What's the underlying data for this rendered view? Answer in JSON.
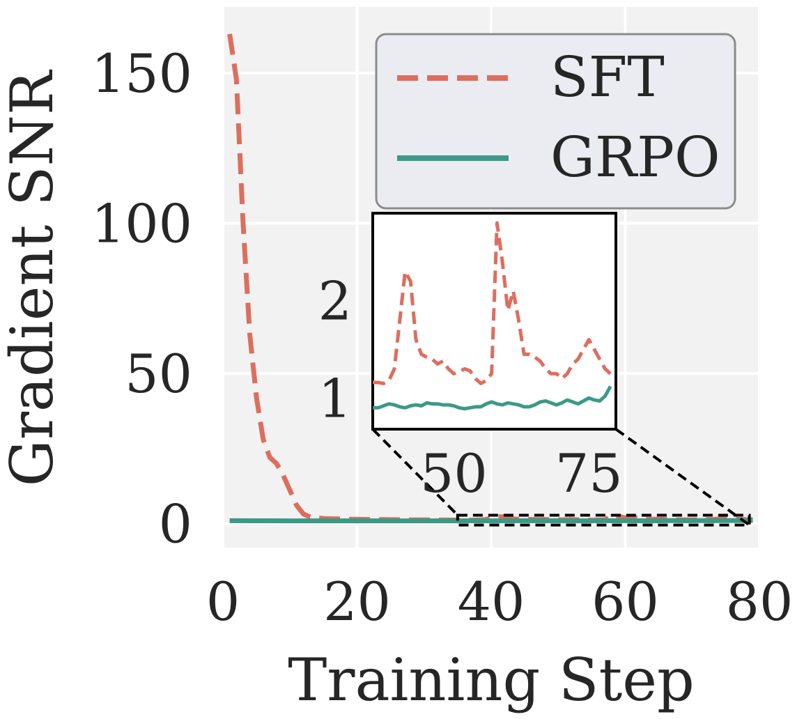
{
  "chart_data": {
    "type": "line",
    "title": "",
    "xlabel": "Training Step",
    "ylabel": "Gradient SNR",
    "xlim": [
      0,
      80
    ],
    "ylim": [
      -8,
      172
    ],
    "xticks": [
      0,
      20,
      40,
      60,
      80
    ],
    "yticks": [
      0,
      50,
      100,
      150
    ],
    "grid": true,
    "legend_position": "top-right",
    "series": [
      {
        "name": "SFT",
        "color": "#dd6e5e",
        "dash": "dashed",
        "x": [
          1,
          2,
          3,
          4,
          5,
          6,
          7,
          8,
          9,
          10,
          11,
          12,
          13,
          14,
          15,
          16,
          17,
          18,
          19,
          20,
          21,
          22,
          23,
          24,
          25,
          26,
          27,
          28,
          29,
          30,
          31,
          32,
          33,
          34,
          35,
          36,
          37,
          38,
          39,
          40,
          41,
          42,
          43,
          44,
          45,
          46,
          47,
          48,
          49,
          50,
          51,
          52,
          53,
          54,
          55,
          56,
          57,
          58,
          59,
          60,
          61,
          62,
          63,
          64,
          65,
          66,
          67,
          68,
          69,
          70,
          71,
          72,
          73,
          74,
          75,
          76,
          77,
          78,
          79
        ],
        "y": [
          163,
          148,
          100,
          63,
          42,
          28,
          22,
          20,
          16,
          11,
          6,
          3.2,
          2.2,
          1.9,
          1.7,
          1.6,
          1.55,
          1.5,
          1.45,
          1.42,
          1.4,
          1.38,
          1.35,
          1.32,
          1.3,
          1.28,
          1.26,
          1.24,
          1.22,
          1.21,
          1.2,
          1.19,
          1.18,
          1.17,
          1.16,
          1.16,
          1.15,
          1.18,
          1.3,
          1.8,
          2.3,
          2.2,
          1.6,
          1.45,
          1.42,
          1.4,
          1.35,
          1.38,
          1.3,
          1.25,
          1.27,
          1.3,
          1.28,
          1.2,
          1.15,
          1.18,
          1.25,
          2.8,
          2.4,
          1.9,
          2.1,
          1.8,
          1.45,
          1.45,
          1.42,
          1.38,
          1.3,
          1.25,
          1.25,
          1.2,
          1.25,
          1.35,
          1.4,
          1.5,
          1.6,
          1.5,
          1.4,
          1.3,
          1.25
        ]
      },
      {
        "name": "GRPO",
        "color": "#3b9a87",
        "dash": "solid",
        "x": [
          1,
          5,
          10,
          15,
          20,
          25,
          30,
          35,
          36,
          37,
          38,
          39,
          40,
          41,
          42,
          43,
          44,
          45,
          46,
          47,
          48,
          49,
          50,
          51,
          52,
          53,
          54,
          55,
          56,
          57,
          58,
          59,
          60,
          61,
          62,
          63,
          64,
          65,
          66,
          67,
          68,
          69,
          70,
          71,
          72,
          73,
          74,
          75,
          76,
          77,
          78,
          79
        ],
        "y": [
          0.95,
          0.92,
          0.9,
          0.9,
          0.9,
          0.9,
          0.9,
          0.9,
          0.9,
          0.92,
          0.94,
          0.93,
          0.91,
          0.9,
          0.92,
          0.93,
          0.92,
          0.95,
          0.94,
          0.94,
          0.93,
          0.93,
          0.92,
          0.9,
          0.89,
          0.9,
          0.91,
          0.91,
          0.94,
          0.96,
          0.94,
          0.93,
          0.95,
          0.94,
          0.93,
          0.91,
          0.91,
          0.93,
          0.96,
          0.97,
          0.95,
          0.93,
          0.95,
          0.98,
          0.96,
          0.94,
          0.97,
          1.0,
          0.98,
          0.97,
          1.02,
          1.12
        ]
      }
    ],
    "inset": {
      "xlim": [
        35,
        80
      ],
      "ylim": [
        0.68,
        2.9
      ],
      "xticks": [
        50,
        75
      ],
      "yticks": [
        1,
        2
      ]
    }
  }
}
